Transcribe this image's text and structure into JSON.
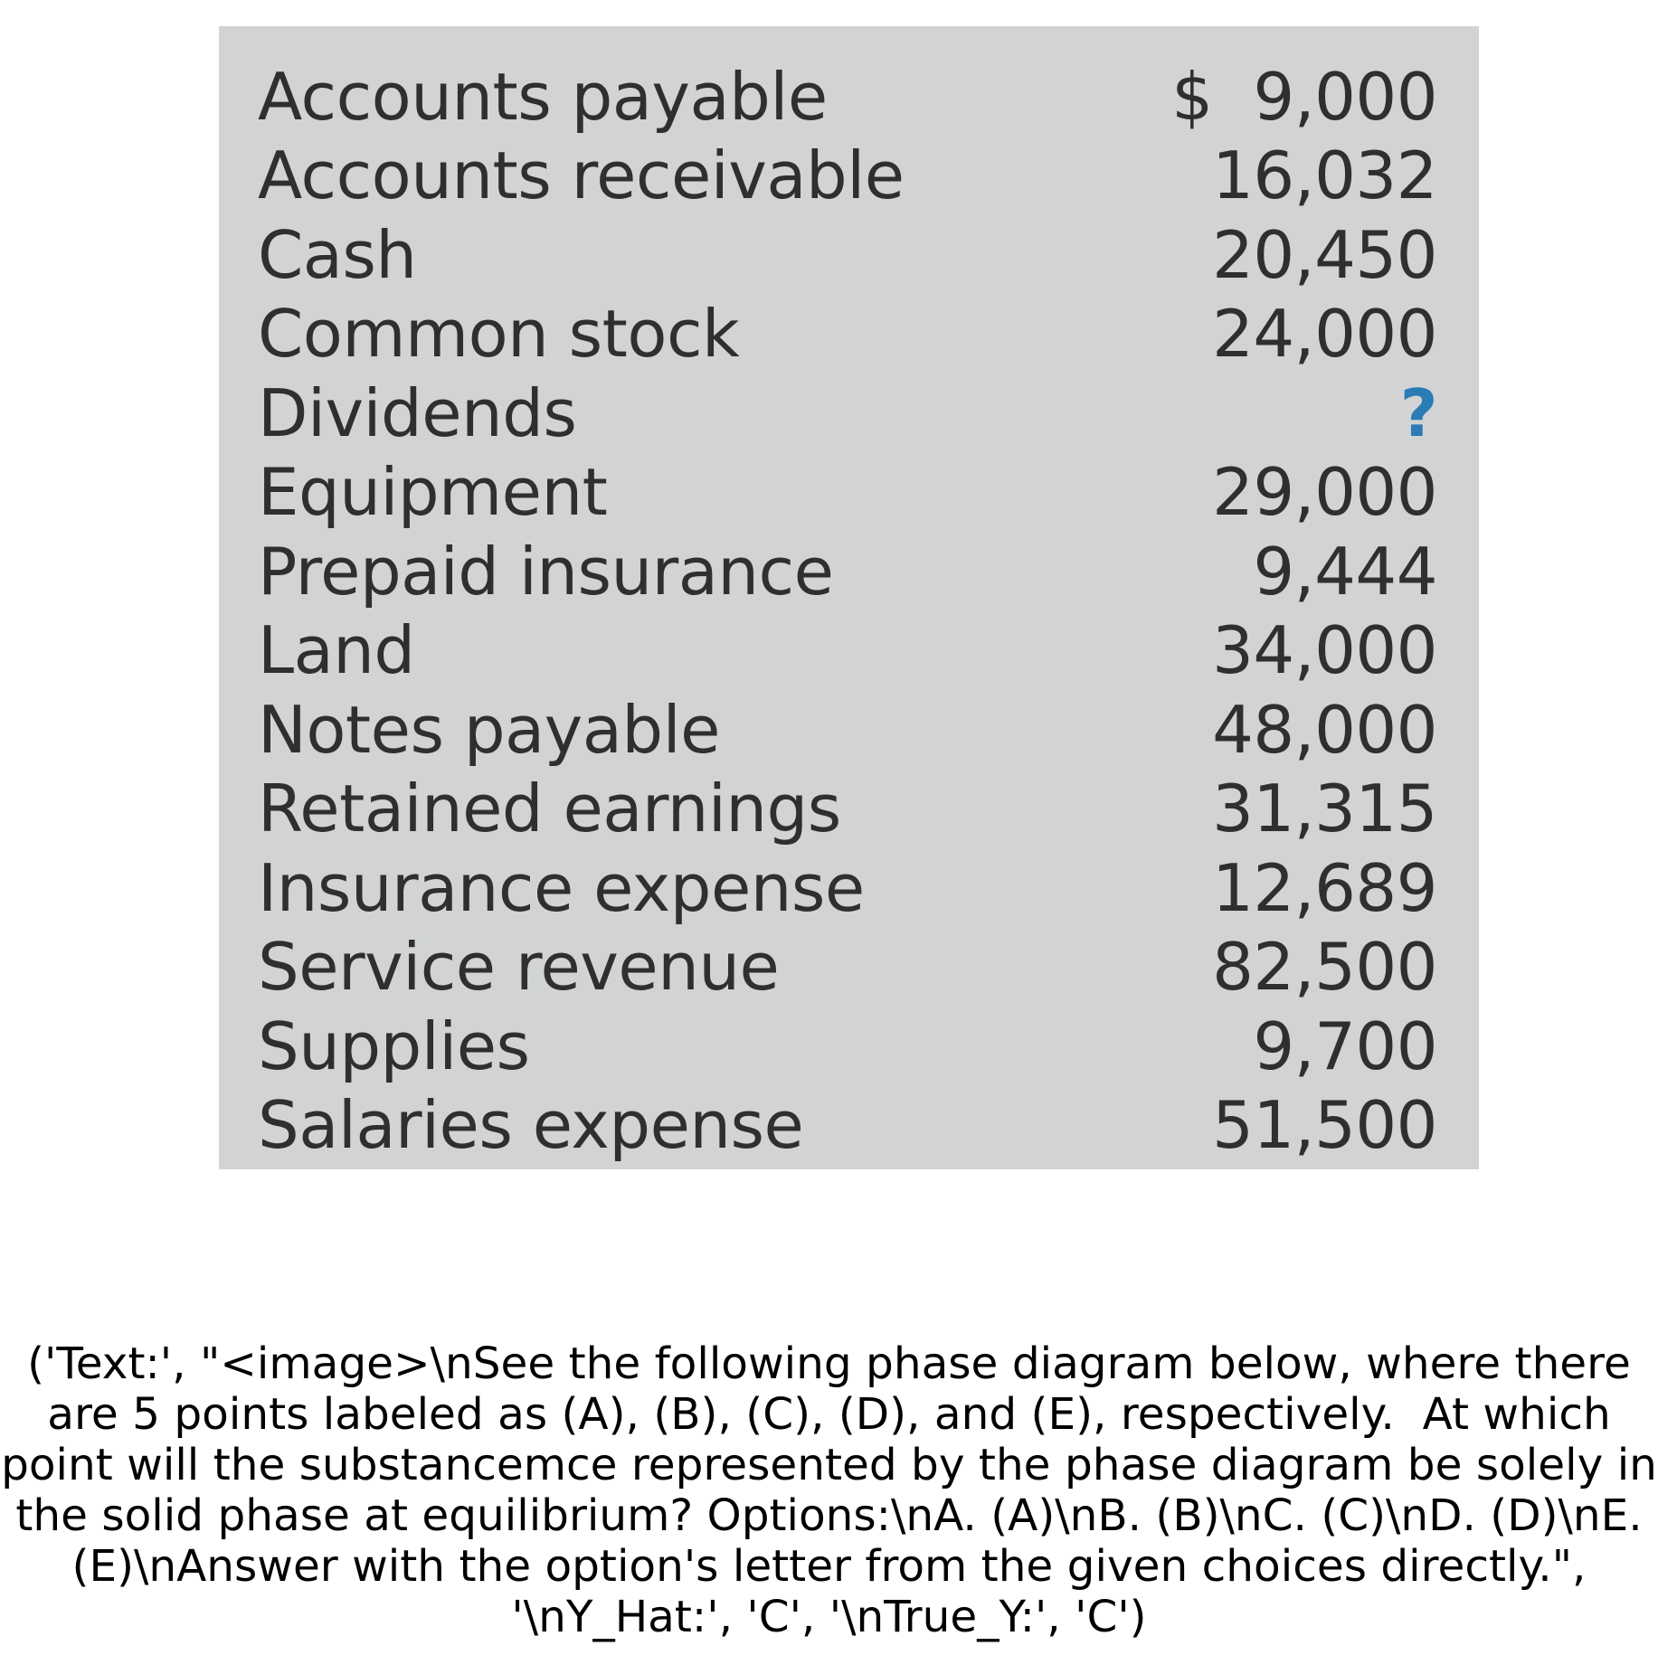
{
  "accounts": [
    {
      "label": "Accounts payable",
      "amount": "$  9,000"
    },
    {
      "label": "Accounts receivable",
      "amount": "16,032"
    },
    {
      "label": "Cash",
      "amount": "20,450"
    },
    {
      "label": "Common stock",
      "amount": "24,000"
    },
    {
      "label": "Dividends",
      "amount": "?"
    },
    {
      "label": "Equipment",
      "amount": "29,000"
    },
    {
      "label": "Prepaid insurance",
      "amount": "9,444"
    },
    {
      "label": "Land",
      "amount": "34,000"
    },
    {
      "label": "Notes payable",
      "amount": "48,000"
    },
    {
      "label": "Retained earnings",
      "amount": "31,315"
    },
    {
      "label": "Insurance expense",
      "amount": "12,689"
    },
    {
      "label": "Service revenue",
      "amount": "82,500"
    },
    {
      "label": "Supplies",
      "amount": "9,700"
    },
    {
      "label": "Salaries expense",
      "amount": "51,500"
    }
  ],
  "colors": {
    "table_background": "#d1d3d4",
    "text": "#2f2f2f",
    "unknown_marker": "#2b7bb4"
  },
  "caption": {
    "text": "('Text:', \"<image>\\nSee the following phase diagram below, where there are 5 points labeled as (A), (B), (C), (D), and (E), respectively.  At which point will the substancemce represented by the phase diagram be solely in the solid phase at equilibrium? Options:\\nA. (A)\\nB. (B)\\nC. (C)\\nD. (D)\\nE. (E)\\nAnswer with the option's letter from the given choices directly.\", '\\nY_Hat:', 'C', '\\nTrue_Y:', 'C')"
  }
}
